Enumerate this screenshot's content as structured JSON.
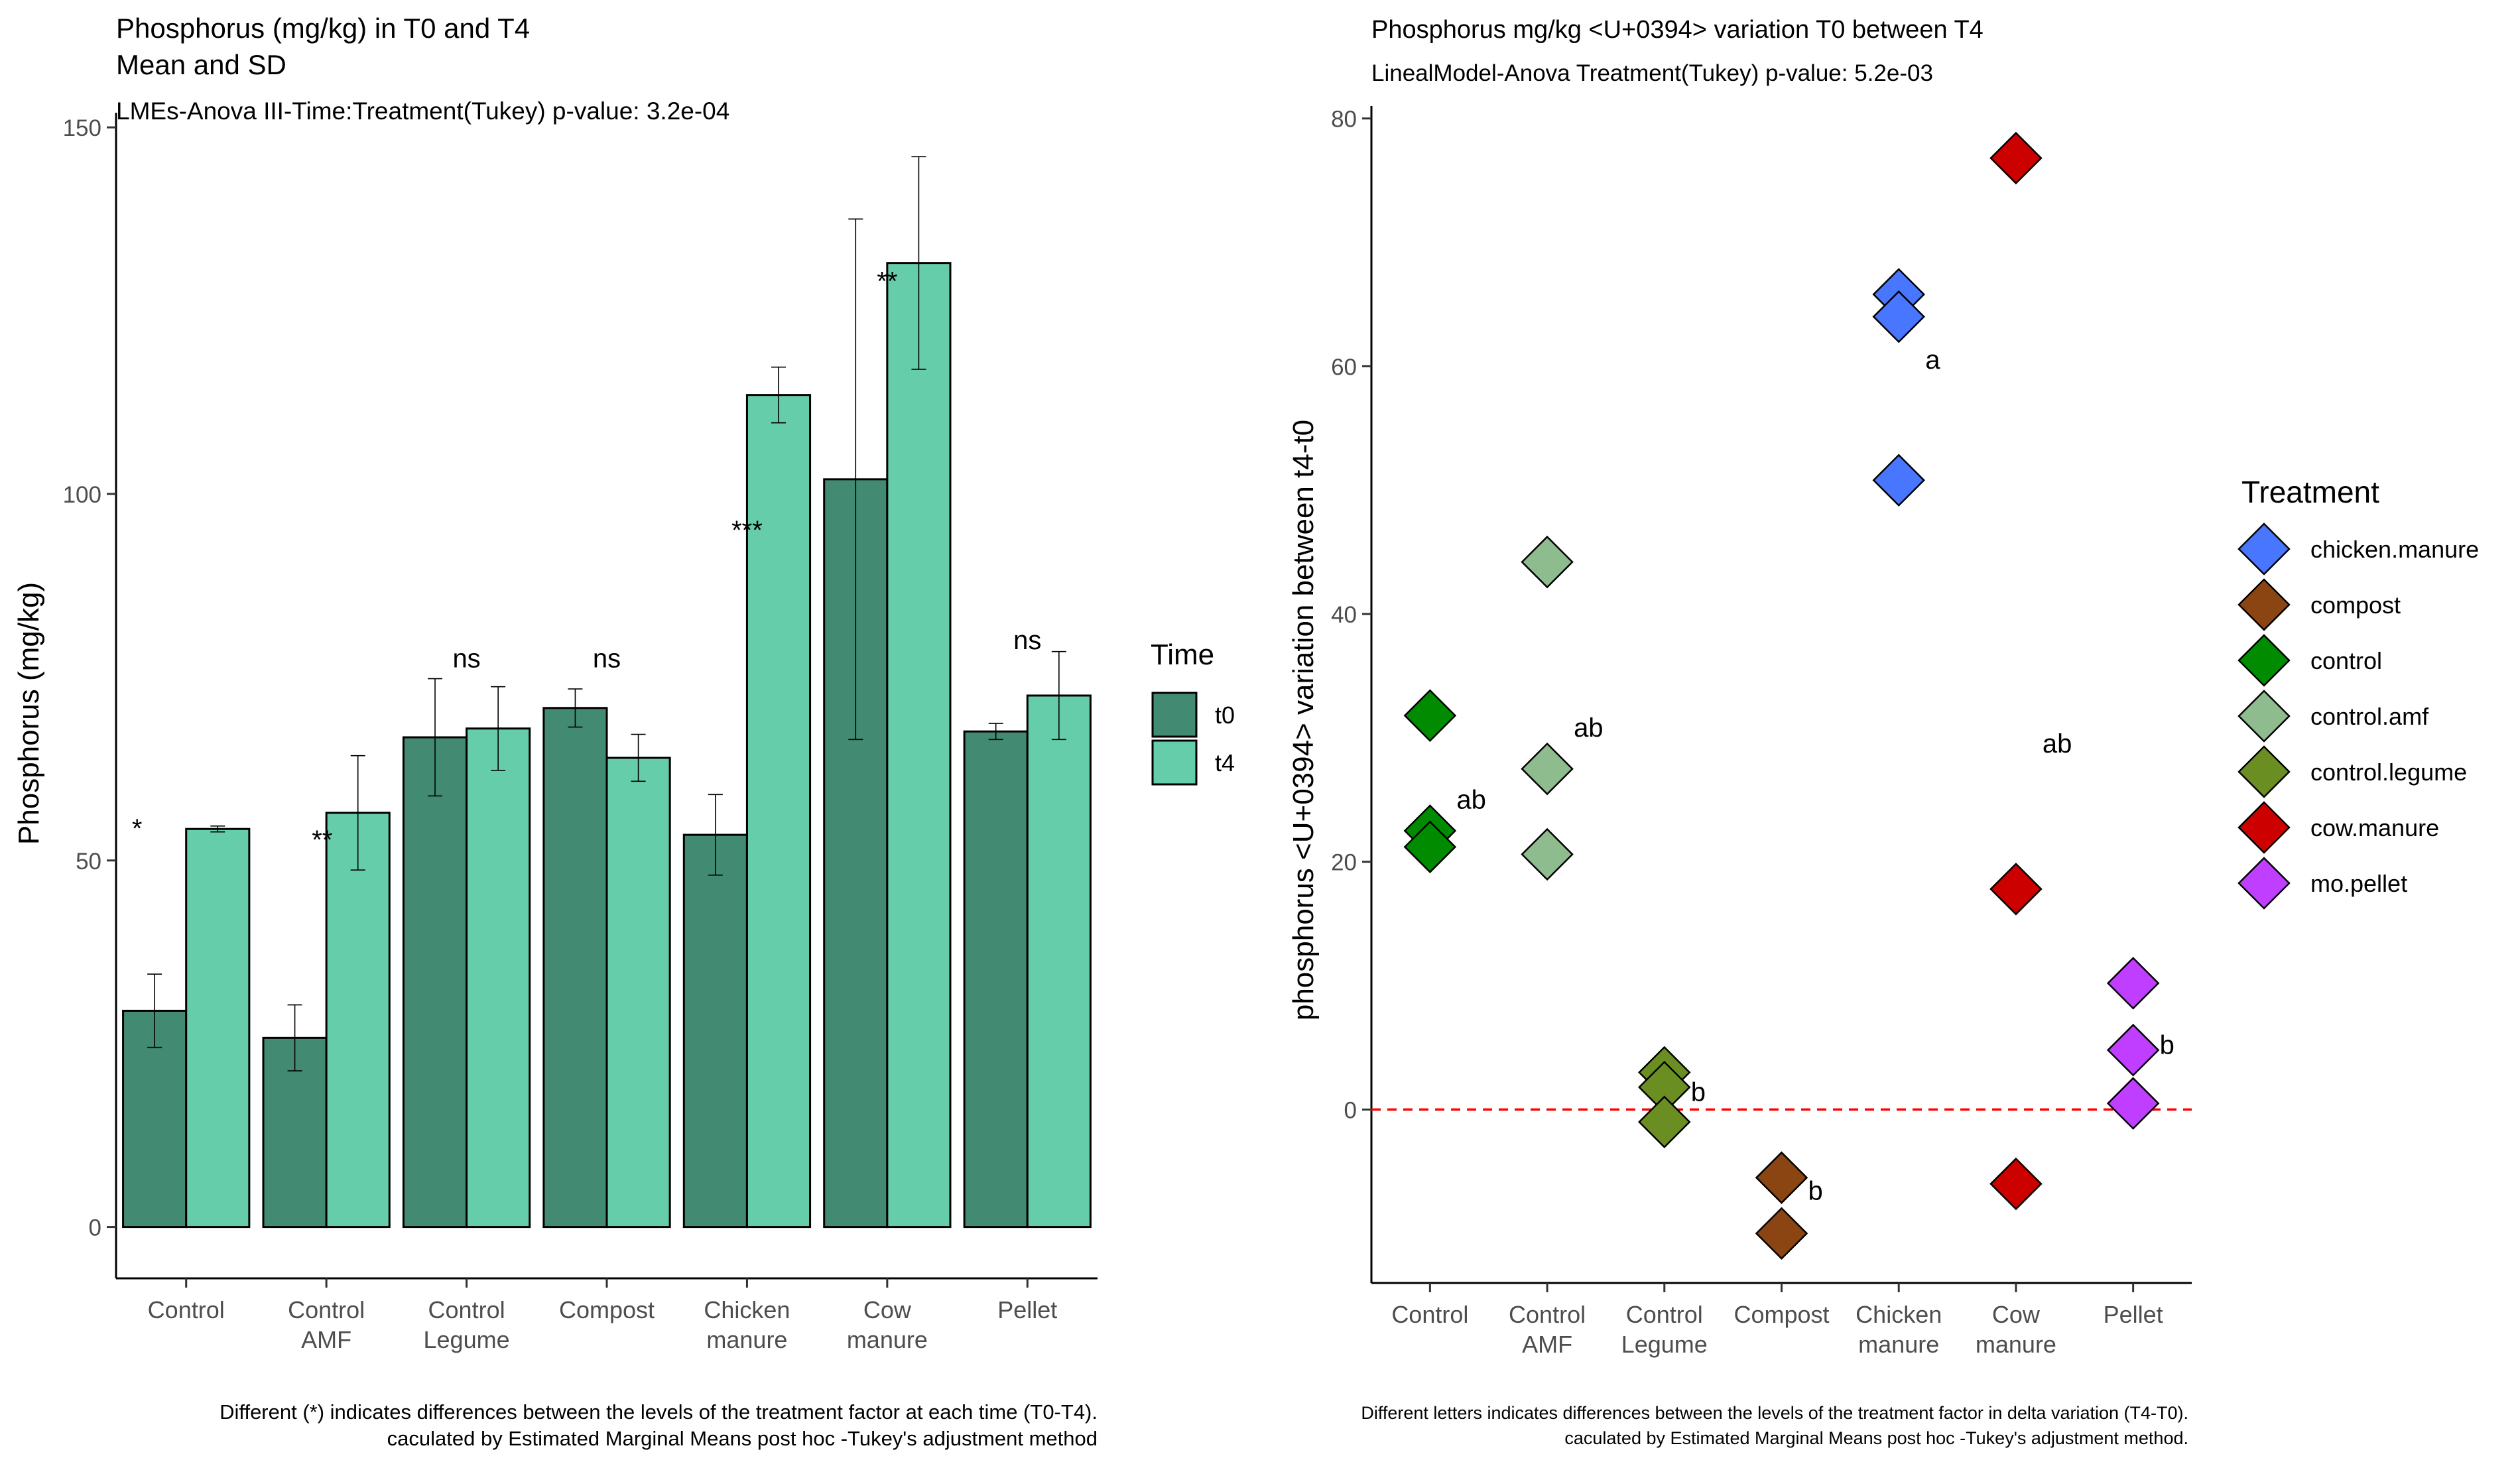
{
  "chart_data": [
    {
      "type": "bar",
      "title": "Phosphorus (mg/kg) in T0 and T4",
      "subtitle_line2": "Mean and SD",
      "subtitle": "LMEs-Anova III-Time:Treatment(Tukey) p-value: 3.2e-04",
      "xlabel": "",
      "ylabel": "Phosphorus (mg/kg)",
      "ylim": [
        -7,
        152
      ],
      "yticks": [
        0,
        50,
        100,
        150
      ],
      "categories": [
        [
          "Control"
        ],
        [
          "Control",
          "AMF"
        ],
        [
          "Control",
          "Legume"
        ],
        [
          "Compost"
        ],
        [
          "Chicken",
          "manure"
        ],
        [
          "Cow",
          "manure"
        ],
        [
          "Pellet"
        ]
      ],
      "series": [
        {
          "name": "t0",
          "color": "#428a72",
          "values": [
            29.5,
            25.8,
            66.8,
            70.8,
            53.5,
            102,
            67.6
          ],
          "sd": [
            5.0,
            4.5,
            8.0,
            2.6,
            5.5,
            35.5,
            1.1
          ]
        },
        {
          "name": "t4",
          "color": "#66cdaa",
          "values": [
            54.3,
            56.5,
            68.0,
            64.0,
            113.5,
            131.5,
            72.5
          ],
          "sd": [
            0.4,
            7.8,
            5.7,
            3.2,
            3.8,
            14.5,
            6.0
          ]
        }
      ],
      "annotations": [
        {
          "text": "*",
          "category": 0,
          "y": 54.3,
          "offset": -0.35
        },
        {
          "text": "**",
          "category": 1,
          "y": 52.8,
          "offset": -0.03
        },
        {
          "text": "ns",
          "category": 2,
          "y": 77.5,
          "offset": 0
        },
        {
          "text": "ns",
          "category": 3,
          "y": 77.5,
          "offset": 0
        },
        {
          "text": "***",
          "category": 4,
          "y": 95.0,
          "offset": 0
        },
        {
          "text": "**",
          "category": 5,
          "y": 129.0,
          "offset": 0
        },
        {
          "text": "ns",
          "category": 6,
          "y": 80.0,
          "offset": 0
        }
      ],
      "legend": {
        "title": "Time",
        "placement": "right",
        "entries": [
          "t0",
          "t4"
        ]
      },
      "grid": false,
      "footnote": [
        "Different (*) indicates differences between the levels of the treatment factor at each time (T0-T4).",
        "caculated by Estimated Marginal Means post hoc -Tukey's adjustment method"
      ]
    },
    {
      "type": "scatter",
      "title": "Phosphorus mg/kg <U+0394> variation T0 between T4",
      "subtitle": "LinealModel-Anova Treatment(Tukey) p-value: 5.2e-03",
      "xlabel": "",
      "ylabel": "phosphorus <U+0394> variation between t4-t0",
      "ylim": [
        -14,
        81
      ],
      "yticks": [
        0,
        20,
        40,
        60,
        80
      ],
      "categories": [
        [
          "Control"
        ],
        [
          "Control",
          "AMF"
        ],
        [
          "Control",
          "Legume"
        ],
        [
          "Compost"
        ],
        [
          "Chicken",
          "manure"
        ],
        [
          "Cow",
          "manure"
        ],
        [
          "Pellet"
        ]
      ],
      "reference_line": {
        "y": 0,
        "color": "#ff0000",
        "style": "dashed"
      },
      "series": [
        {
          "name": "control",
          "color": "#008b00",
          "category": 0,
          "values": [
            31.8,
            22.5,
            21.2
          ]
        },
        {
          "name": "control.amf",
          "color": "#8fbc8f",
          "category": 1,
          "values": [
            44.2,
            27.5,
            20.6
          ]
        },
        {
          "name": "control.legume",
          "color": "#6b8e23",
          "category": 2,
          "values": [
            3.0,
            1.8,
            -1.0
          ]
        },
        {
          "name": "compost",
          "color": "#8b4513",
          "category": 3,
          "values": [
            -5.5,
            -10.0
          ]
        },
        {
          "name": "chicken.manure",
          "color": "#4876ff",
          "category": 4,
          "values": [
            65.8,
            64.0,
            50.8
          ]
        },
        {
          "name": "cow.manure",
          "color": "#cd0000",
          "category": 5,
          "values": [
            76.8,
            17.8,
            -6.0
          ]
        },
        {
          "name": "mo.pellet",
          "color": "#bf3eff",
          "category": 6,
          "values": [
            10.2,
            4.8,
            0.5
          ]
        }
      ],
      "letters": [
        {
          "text": "ab",
          "category": 0,
          "y": 25.0
        },
        {
          "text": "ab",
          "category": 1,
          "y": 30.8
        },
        {
          "text": "b",
          "category": 2,
          "y": 1.4
        },
        {
          "text": "b",
          "category": 3,
          "y": -6.6
        },
        {
          "text": "a",
          "category": 4,
          "y": 60.5
        },
        {
          "text": "ab",
          "category": 5,
          "y": 29.5
        },
        {
          "text": "b",
          "category": 6,
          "y": 5.2
        }
      ],
      "legend": {
        "title": "Treatment",
        "placement": "right",
        "entries": [
          "chicken.manure",
          "compost",
          "control",
          "control.amf",
          "control.legume",
          "cow.manure",
          "mo.pellet"
        ]
      },
      "grid": false,
      "footnote": [
        "Different letters indicates differences between the levels of the treatment factor in delta variation (T4-T0).",
        "caculated by Estimated Marginal Means post hoc -Tukey's adjustment method."
      ]
    }
  ]
}
